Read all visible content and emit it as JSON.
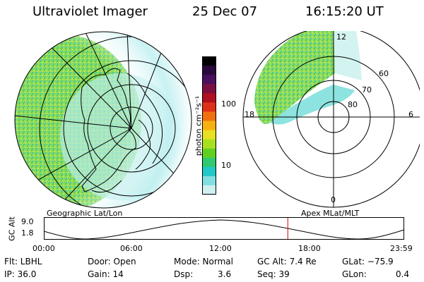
{
  "header": {
    "instrument": "Ultraviolet Imager",
    "date": "25 Dec 07",
    "time": "16:15:20 UT"
  },
  "left_panel": {
    "caption": "Geographic Lat/Lon"
  },
  "right_panel": {
    "caption": "Apex MLat/MLT",
    "lat_labels": [
      "60",
      "70",
      "80"
    ],
    "mlt_labels": {
      "top": "12",
      "left": "18",
      "right": "6",
      "bottom": "0"
    }
  },
  "colorbar": {
    "unit_label": "photon cm⁻²s⁻¹",
    "ticks": [
      "100",
      "10"
    ],
    "colors": [
      "#000000",
      "#2a0a3c",
      "#4a1060",
      "#7a1040",
      "#b01020",
      "#e03018",
      "#f07010",
      "#f8b010",
      "#e8e020",
      "#a8e020",
      "#60d020",
      "#30c870",
      "#20c8c8",
      "#80e0e0",
      "#d0f0f0"
    ]
  },
  "altitude_plot": {
    "axis_label": "GC Alt",
    "y_ticks": [
      "9.0",
      "1.8"
    ],
    "x_ticks": [
      "00:00",
      "06:00",
      "12:00",
      "18:00",
      "23:59"
    ],
    "current_time_fraction": 0.677,
    "marker_color": "#dd0000"
  },
  "info": {
    "row1": [
      "Flt: LBHL",
      "Door: Open",
      "Mode: Normal",
      "GC Alt: 7.4 Re",
      "GLat: −75.9"
    ],
    "row2": [
      "IP: 36.0",
      "Gain: 14",
      "Dsp:",
      "3.6",
      "Seq: 39",
      "GLon:",
      "0.4"
    ]
  }
}
